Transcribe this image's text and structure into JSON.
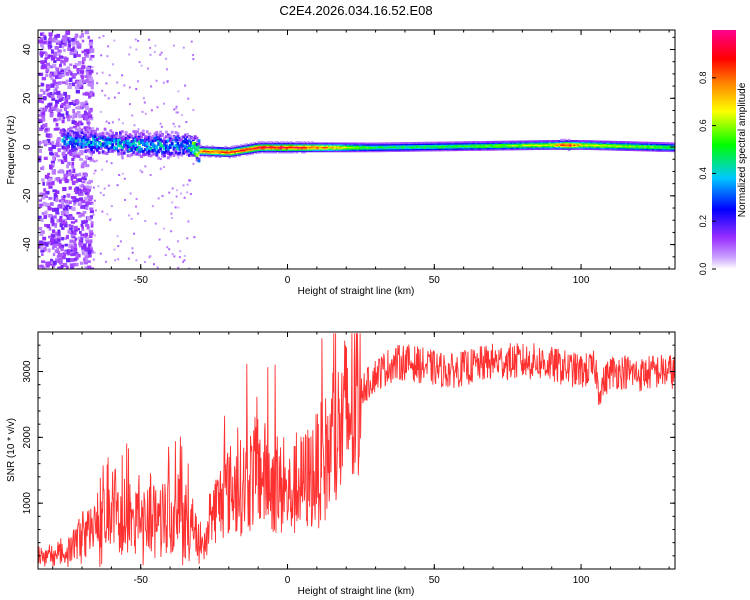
{
  "title": "C2E4.2026.034.16.52.E08",
  "chart_data": [
    {
      "type": "heatmap",
      "xlabel": "Height of straight line (km)",
      "ylabel": "Frequency (Hz)",
      "xlim": [
        -85,
        132
      ],
      "ylim": [
        -50,
        48
      ],
      "xticks": [
        -50,
        0,
        50,
        100
      ],
      "yticks": [
        -40,
        -20,
        0,
        20,
        40
      ],
      "grid": false,
      "colorbar": {
        "label": "Normalized spectral amplitude",
        "range": [
          0,
          1
        ],
        "ticks": [
          "0.0",
          "0.2",
          "0.4",
          "0.6",
          "0.8"
        ],
        "colormap": [
          "#ffffff",
          "#9a30ff",
          "#0000ff",
          "#00c8ff",
          "#00ff00",
          "#ffff00",
          "#ff8000",
          "#ff0000",
          "#ff0090"
        ]
      },
      "ridge": [
        {
          "x": -75,
          "freq": 3,
          "amp": 0.4
        },
        {
          "x": -60,
          "freq": 2,
          "amp": 0.45
        },
        {
          "x": -45,
          "freq": 1,
          "amp": 0.45
        },
        {
          "x": -35,
          "freq": 1,
          "amp": 0.4
        },
        {
          "x": -30,
          "freq": -1.5,
          "amp": 0.85
        },
        {
          "x": -20,
          "freq": -2,
          "amp": 0.9
        },
        {
          "x": -10,
          "freq": 0,
          "amp": 0.95
        },
        {
          "x": 0,
          "freq": 0,
          "amp": 0.95
        },
        {
          "x": 10,
          "freq": 0,
          "amp": 0.85
        },
        {
          "x": 30,
          "freq": 0,
          "amp": 0.5
        },
        {
          "x": 60,
          "freq": 0.5,
          "amp": 0.55
        },
        {
          "x": 90,
          "freq": 1,
          "amp": 0.7
        },
        {
          "x": 95,
          "freq": 1,
          "amp": 0.95
        },
        {
          "x": 100,
          "freq": 1,
          "amp": 0.7
        },
        {
          "x": 132,
          "freq": 0,
          "amp": 0.55
        }
      ]
    },
    {
      "type": "line",
      "xlabel": "Height of straight line (km)",
      "ylabel": "SNR (10 * v/v)",
      "xlim": [
        -85,
        132
      ],
      "ylim": [
        0,
        3600
      ],
      "xticks": [
        -50,
        0,
        50,
        100
      ],
      "yticks": [
        1000,
        2000,
        3000
      ],
      "grid": false,
      "series": [
        {
          "color": "#ff3030",
          "x": [
            -85,
            -80,
            -75,
            -70,
            -65,
            -60,
            -55,
            -50,
            -45,
            -40,
            -35,
            -30,
            -28,
            -25,
            -20,
            -15,
            -10,
            -5,
            0,
            5,
            10,
            15,
            20,
            25,
            30,
            35,
            40,
            45,
            50,
            55,
            60,
            65,
            70,
            75,
            80,
            85,
            90,
            95,
            100,
            105,
            106,
            110,
            115,
            120,
            125,
            132
          ],
          "y": [
            150,
            150,
            250,
            500,
            700,
            800,
            780,
            750,
            800,
            900,
            850,
            400,
            350,
            900,
            1200,
            1250,
            1500,
            1300,
            1100,
            1300,
            1500,
            1800,
            2300,
            2700,
            2950,
            3100,
            3150,
            3100,
            3050,
            3000,
            3050,
            3100,
            3150,
            3150,
            3150,
            3150,
            3100,
            3050,
            3000,
            3050,
            2700,
            3000,
            3000,
            2950,
            3000,
            3000
          ]
        }
      ]
    }
  ]
}
